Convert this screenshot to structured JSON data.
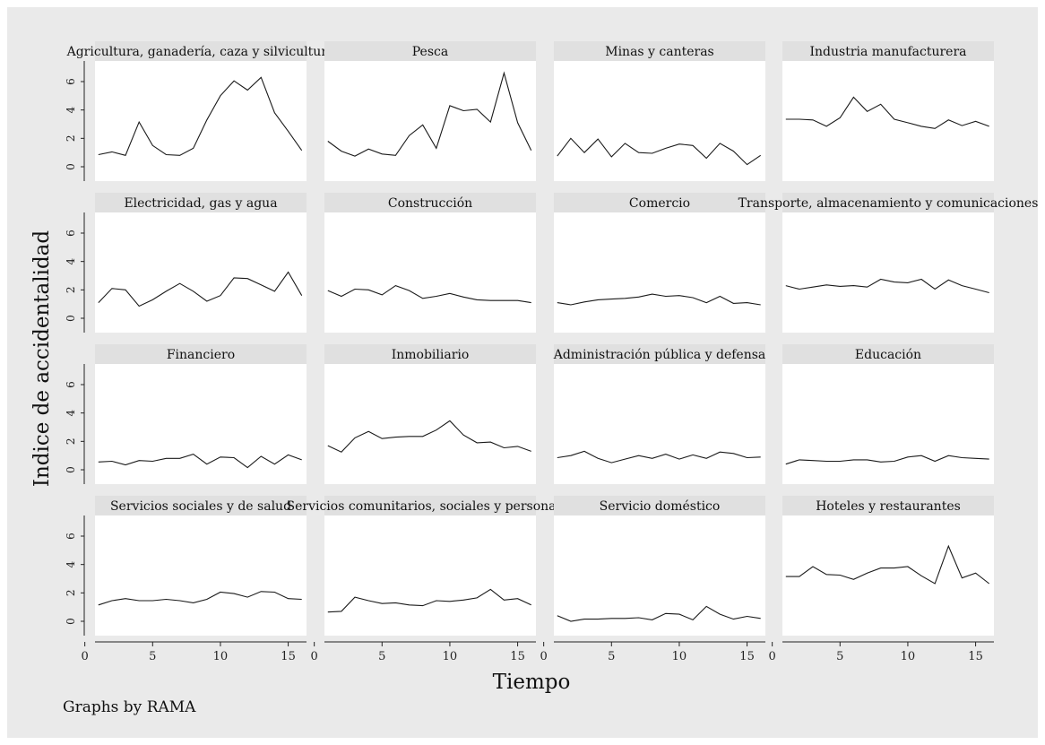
{
  "figure": {
    "ylabel": "Indice de accidentalidad",
    "xlabel": "Tiempo",
    "note": "Graphs by RAMA"
  },
  "chart_data": {
    "type": "line",
    "layout": "small-multiples",
    "xlim": [
      0,
      16
    ],
    "ylim": [
      0,
      7
    ],
    "xticks": [
      0,
      5,
      10,
      15
    ],
    "yticks": [
      0,
      2,
      4,
      6
    ],
    "x": [
      1,
      2,
      3,
      4,
      5,
      6,
      7,
      8,
      9,
      10,
      11,
      12,
      13,
      14,
      15,
      16
    ],
    "panels": [
      {
        "title": "Agricultura, ganadería, caza y silvicultura",
        "values": [
          0.85,
          1.05,
          0.8,
          3.15,
          1.5,
          0.85,
          0.8,
          1.3,
          3.3,
          5.0,
          6.05,
          5.4,
          6.3,
          3.8,
          2.5,
          1.15
        ]
      },
      {
        "title": "Pesca",
        "values": [
          1.8,
          1.1,
          0.75,
          1.25,
          0.9,
          0.8,
          2.2,
          2.95,
          1.3,
          4.3,
          3.95,
          4.05,
          3.15,
          6.6,
          3.1,
          1.15
        ]
      },
      {
        "title": "Minas y canteras",
        "values": [
          0.75,
          2.0,
          1.0,
          1.95,
          0.7,
          1.65,
          1.0,
          0.95,
          1.3,
          1.6,
          1.5,
          0.6,
          1.65,
          1.1,
          0.15,
          0.8
        ]
      },
      {
        "title": "Industria manufacturera",
        "values": [
          3.35,
          3.35,
          3.3,
          2.85,
          3.45,
          4.9,
          3.9,
          4.4,
          3.35,
          3.1,
          2.85,
          2.7,
          3.3,
          2.9,
          3.2,
          2.85
        ]
      },
      {
        "title": "Electricidad, gas y agua",
        "values": [
          1.1,
          2.1,
          2.0,
          0.85,
          1.3,
          1.9,
          2.45,
          1.9,
          1.2,
          1.6,
          2.85,
          2.8,
          2.35,
          1.9,
          3.25,
          1.6
        ]
      },
      {
        "title": "Construcción",
        "values": [
          1.95,
          1.55,
          2.05,
          2.0,
          1.65,
          2.3,
          1.95,
          1.4,
          1.55,
          1.75,
          1.5,
          1.3,
          1.25,
          1.25,
          1.25,
          1.1
        ]
      },
      {
        "title": "Comercio",
        "values": [
          1.1,
          0.95,
          1.15,
          1.3,
          1.35,
          1.4,
          1.5,
          1.7,
          1.55,
          1.6,
          1.45,
          1.1,
          1.55,
          1.05,
          1.1,
          0.95
        ]
      },
      {
        "title": "Transporte, almacenamiento y comunicaciones",
        "values": [
          2.3,
          2.05,
          2.2,
          2.35,
          2.25,
          2.3,
          2.2,
          2.75,
          2.55,
          2.5,
          2.75,
          2.05,
          2.7,
          2.3,
          2.05,
          1.8
        ]
      },
      {
        "title": "Financiero",
        "values": [
          0.55,
          0.6,
          0.35,
          0.65,
          0.6,
          0.8,
          0.8,
          1.1,
          0.4,
          0.9,
          0.85,
          0.15,
          0.95,
          0.4,
          1.05,
          0.7
        ]
      },
      {
        "title": "Inmobiliario",
        "values": [
          1.7,
          1.25,
          2.25,
          2.7,
          2.2,
          2.3,
          2.35,
          2.35,
          2.8,
          3.45,
          2.45,
          1.9,
          1.95,
          1.55,
          1.65,
          1.3
        ]
      },
      {
        "title": "Administración pública y defensa",
        "values": [
          0.85,
          1.0,
          1.3,
          0.8,
          0.5,
          0.75,
          1.0,
          0.8,
          1.1,
          0.75,
          1.05,
          0.8,
          1.25,
          1.15,
          0.85,
          0.9
        ]
      },
      {
        "title": "Educación",
        "values": [
          0.4,
          0.7,
          0.65,
          0.6,
          0.6,
          0.7,
          0.7,
          0.55,
          0.6,
          0.9,
          1.0,
          0.6,
          1.0,
          0.85,
          0.8,
          0.75
        ]
      },
      {
        "title": "Servicios sociales y de salud",
        "values": [
          1.15,
          1.45,
          1.6,
          1.45,
          1.45,
          1.55,
          1.45,
          1.3,
          1.55,
          2.05,
          1.95,
          1.7,
          2.1,
          2.05,
          1.6,
          1.55
        ]
      },
      {
        "title": "Servicios comunitarios, sociales y personales",
        "values": [
          0.65,
          0.7,
          1.7,
          1.45,
          1.25,
          1.3,
          1.15,
          1.1,
          1.45,
          1.4,
          1.5,
          1.65,
          2.25,
          1.5,
          1.6,
          1.15
        ]
      },
      {
        "title": "Servicio doméstico",
        "values": [
          0.4,
          0.0,
          0.15,
          0.15,
          0.2,
          0.2,
          0.25,
          0.1,
          0.55,
          0.5,
          0.1,
          1.05,
          0.5,
          0.15,
          0.35,
          0.2
        ]
      },
      {
        "title": "Hoteles y restaurantes",
        "values": [
          3.15,
          3.15,
          3.85,
          3.3,
          3.25,
          2.95,
          3.4,
          3.75,
          3.75,
          3.85,
          3.2,
          2.65,
          5.3,
          3.05,
          3.4,
          2.65
        ]
      }
    ]
  }
}
